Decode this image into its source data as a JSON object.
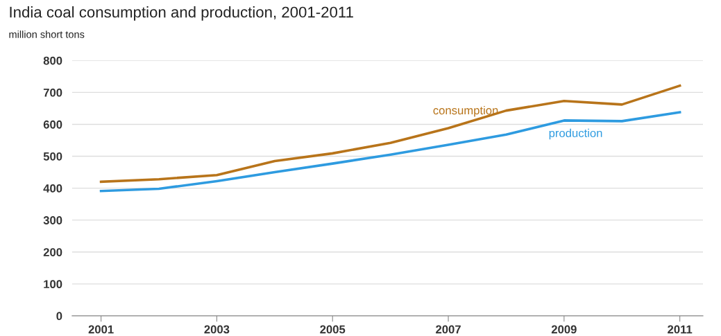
{
  "chart_data": {
    "type": "line",
    "title": "India coal consumption and production, 2001-2011",
    "ylabel": "million short tons",
    "x": [
      2001,
      2002,
      2003,
      2004,
      2005,
      2006,
      2007,
      2008,
      2009,
      2010,
      2011
    ],
    "series": [
      {
        "name": "consumption",
        "color": "#b8741a",
        "values": [
          420,
          428,
          441,
          485,
          509,
          542,
          588,
          643,
          673,
          662,
          721
        ]
      },
      {
        "name": "production",
        "color": "#2e9be0",
        "values": [
          391,
          398,
          422,
          450,
          477,
          505,
          536,
          568,
          612,
          610,
          638
        ]
      }
    ],
    "xlim": [
      2000.5,
      2011.4
    ],
    "xticks": [
      2001,
      2003,
      2005,
      2007,
      2009,
      2011
    ],
    "ylim": [
      0,
      800
    ],
    "yticks": [
      0,
      100,
      200,
      300,
      400,
      500,
      600,
      700,
      800
    ],
    "grid": "y",
    "legend": false,
    "marker": "none",
    "line_style": "solid"
  }
}
